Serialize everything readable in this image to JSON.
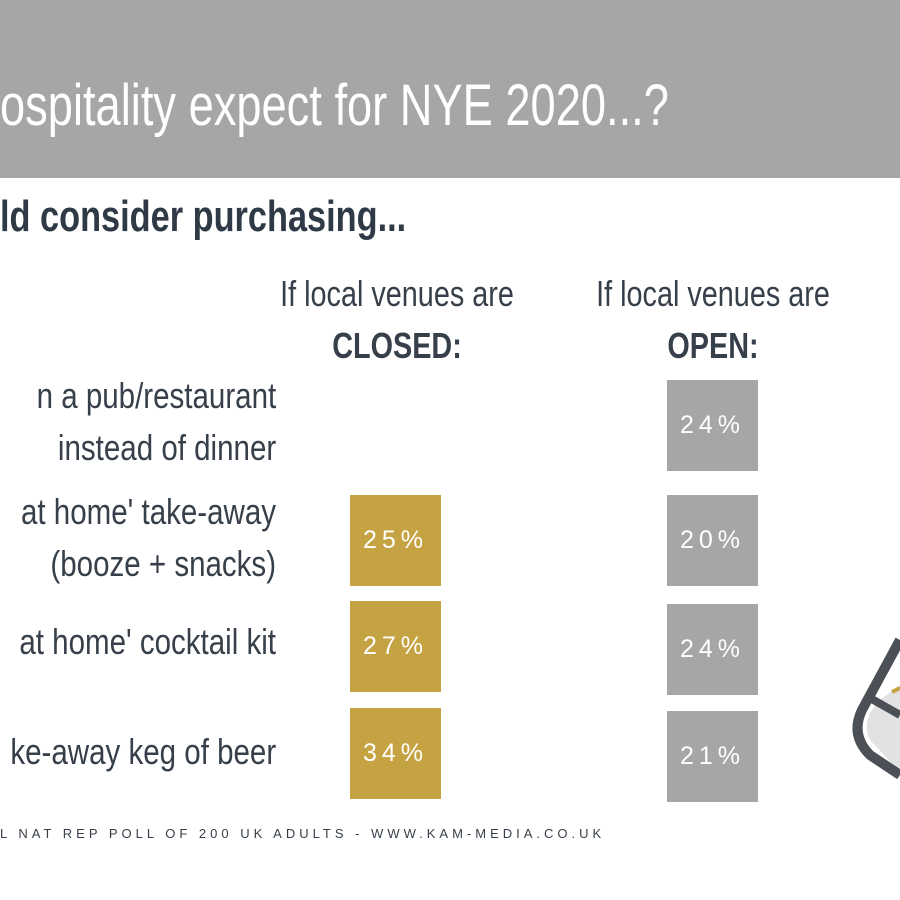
{
  "title": "ospitality expect for NYE 2020...?",
  "subtitle": "ld consider purchasing...",
  "columns": [
    {
      "line1": "If local venues are",
      "line2": "CLOSED:"
    },
    {
      "line1": "If local venues are",
      "line2": "OPEN:"
    }
  ],
  "rows": [
    {
      "label1": "n a pub/restaurant",
      "label2": "instead of dinner",
      "closed": null,
      "open": "24%"
    },
    {
      "label1": "at home' take-away",
      "label2": "(booze + snacks)",
      "closed": "25%",
      "open": "20%"
    },
    {
      "label1": "at home' cocktail kit",
      "label2": "",
      "closed": "27%",
      "open": "24%"
    },
    {
      "label1": "ke-away keg of beer",
      "label2": "",
      "closed": "34%",
      "open": "21%"
    }
  ],
  "footer": "L NAT REP POLL OF 200 UK ADULTS - WWW.KAM-MEDIA.CO.UK",
  "colors": {
    "closed": "#c5a342",
    "open": "#a6a6a6",
    "band": "#a6a6a6"
  }
}
